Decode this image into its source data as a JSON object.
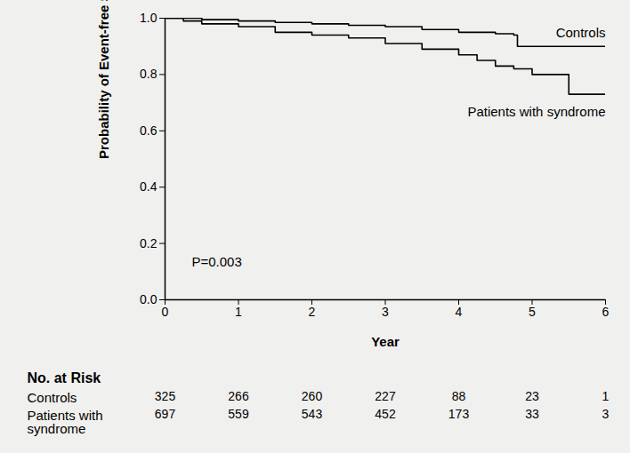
{
  "chart_data": {
    "type": "line",
    "line_style": "step",
    "grid": false,
    "xlabel": "Year",
    "ylabel": "Probability of Event-free Survival",
    "xlim": [
      0,
      6
    ],
    "xticks": [
      0,
      1,
      2,
      3,
      4,
      5,
      6
    ],
    "ylim": [
      0,
      1
    ],
    "yticks": [
      {
        "value": 0,
        "label": "0.0"
      },
      0.2,
      0.4,
      0.6,
      0.8,
      {
        "value": 1,
        "label": "1.0"
      }
    ],
    "annotations": [
      {
        "text": "P=0.003"
      }
    ],
    "series": [
      {
        "name": "Controls",
        "color": "#000000",
        "x": [
          0,
          0.5,
          1,
          1.5,
          2,
          2.5,
          3,
          3.5,
          4,
          4.5,
          4.75,
          4.8,
          6
        ],
        "values": [
          1,
          0.995,
          0.99,
          0.985,
          0.98,
          0.975,
          0.97,
          0.96,
          0.95,
          0.945,
          0.94,
          0.9,
          0.9
        ]
      },
      {
        "name": "Patients with syndrome",
        "color": "#000000",
        "x": [
          0,
          0.25,
          0.5,
          1,
          1.5,
          2,
          2.5,
          3,
          3.5,
          4,
          4.25,
          4.5,
          4.75,
          5,
          5.5,
          6
        ],
        "values": [
          1,
          0.99,
          0.98,
          0.97,
          0.95,
          0.94,
          0.93,
          0.91,
          0.89,
          0.87,
          0.85,
          0.83,
          0.82,
          0.8,
          0.73,
          0.73
        ]
      }
    ],
    "at_risk": {
      "title": "No. at Risk",
      "x": [
        0,
        1,
        2,
        3,
        4,
        5,
        6
      ],
      "rows": [
        {
          "name": "Controls",
          "values": [
            325,
            266,
            260,
            227,
            88,
            23,
            1
          ]
        },
        {
          "name": "Patients with syndrome",
          "values": [
            697,
            559,
            543,
            452,
            173,
            33,
            3
          ]
        }
      ]
    }
  }
}
